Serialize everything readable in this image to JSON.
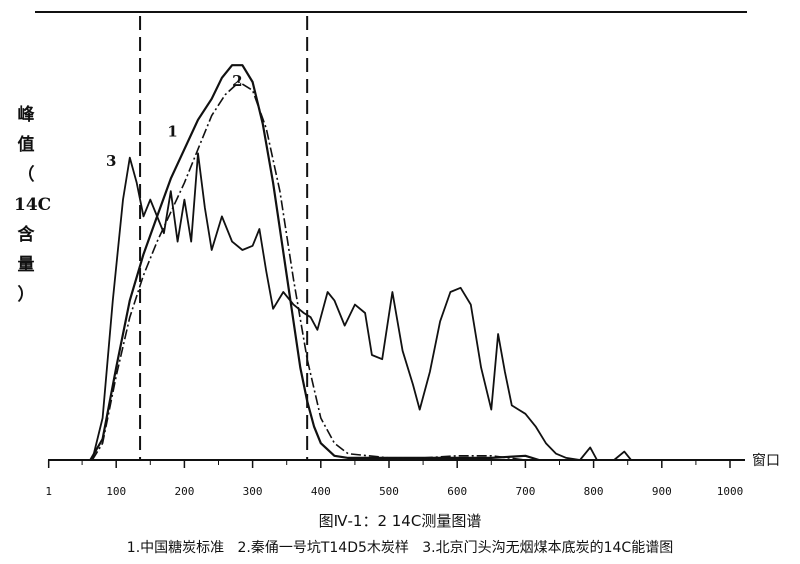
{
  "chart_data": {
    "type": "line",
    "title": "图Ⅳ-1：2  14C测量图谱",
    "legend_text": "1.中国糖炭标准   2.秦俑一号坑T14D5木炭样   3.北京门头沟无烟煤本底炭的14C能谱图",
    "xlabel": "窗口",
    "ylabel": [
      "峰",
      "值",
      "（",
      "14C",
      "含",
      "量",
      "）"
    ],
    "x_ticks": [
      "1",
      "100",
      "200",
      "300",
      "400",
      "500",
      "600",
      "700",
      "800",
      "900",
      "1000"
    ],
    "xlim": [
      0,
      1000
    ],
    "ylim": [
      0,
      100
    ],
    "window_markers": [
      135,
      380
    ],
    "series": [
      {
        "name": "1",
        "x": [
          62,
          80,
          100,
          120,
          140,
          160,
          180,
          200,
          220,
          240,
          255,
          270,
          285,
          300,
          315,
          330,
          340,
          350,
          360,
          370,
          380,
          390,
          400,
          420,
          440,
          500,
          550,
          600,
          650,
          700,
          720
        ],
        "y": [
          0,
          5,
          22,
          38,
          49,
          58,
          67,
          74,
          81,
          86,
          91,
          94,
          94,
          90,
          80,
          66,
          55,
          44,
          33,
          22,
          14,
          8,
          4,
          1,
          0.5,
          0.5,
          0.5,
          0.5,
          0.5,
          1,
          0
        ]
      },
      {
        "name": "2",
        "x": [
          65,
          80,
          100,
          120,
          140,
          160,
          180,
          200,
          220,
          240,
          260,
          280,
          300,
          320,
          340,
          360,
          380,
          400,
          420,
          440,
          500,
          550,
          600,
          650,
          700
        ],
        "y": [
          0,
          4,
          20,
          34,
          44,
          52,
          59,
          66,
          74,
          82,
          87,
          90,
          88,
          79,
          64,
          43,
          24,
          10,
          4,
          1.5,
          0.5,
          0.5,
          1,
          1,
          0
        ]
      },
      {
        "name": "3",
        "x": [
          65,
          80,
          95,
          110,
          120,
          130,
          140,
          150,
          160,
          170,
          180,
          190,
          200,
          210,
          220,
          230,
          240,
          255,
          270,
          285,
          300,
          310,
          320,
          330,
          345,
          360,
          375,
          385,
          395,
          410,
          420,
          435,
          450,
          465,
          475,
          490,
          505,
          520,
          535,
          545,
          560,
          575,
          590,
          605,
          620,
          635,
          650,
          660,
          670,
          680,
          690,
          700,
          715,
          730,
          745,
          760,
          780,
          795,
          805,
          815,
          830,
          845,
          855
        ],
        "y": [
          0,
          10,
          38,
          62,
          72,
          66,
          58,
          62,
          58,
          54,
          64,
          52,
          62,
          52,
          73,
          60,
          50,
          58,
          52,
          50,
          51,
          55,
          45,
          36,
          40,
          37,
          35,
          34,
          31,
          40,
          38,
          32,
          37,
          35,
          25,
          24,
          40,
          26,
          18,
          12,
          21,
          33,
          40,
          41,
          37,
          22,
          12,
          30,
          21,
          13,
          12,
          11,
          8,
          4,
          1.5,
          0.5,
          0,
          3,
          0,
          0,
          0,
          2,
          0
        ]
      }
    ],
    "curve_labels": [
      {
        "text": "1",
        "x": 175,
        "y": 77
      },
      {
        "text": "2",
        "x": 270,
        "y": 89
      },
      {
        "text": "3",
        "x": 85,
        "y": 70
      }
    ]
  }
}
